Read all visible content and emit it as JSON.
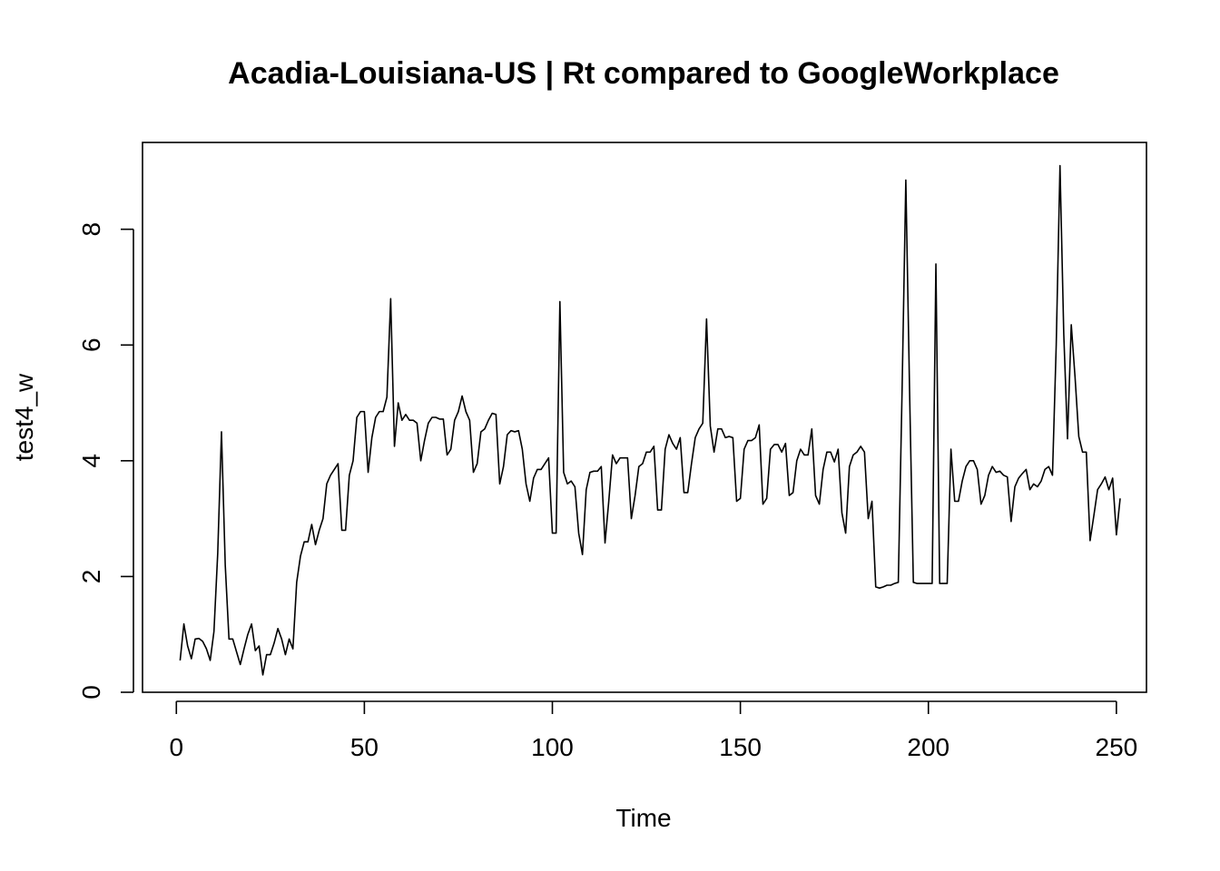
{
  "chart_data": {
    "type": "line",
    "title": "Acadia-Louisiana-US | Rt compared to GoogleWorkplace",
    "xlabel": "Time",
    "ylabel": "test4_w",
    "xlim": [
      -9,
      258
    ],
    "ylim": [
      0,
      9.5
    ],
    "xticks": [
      0,
      50,
      100,
      150,
      200,
      250
    ],
    "yticks": [
      0,
      2,
      4,
      6,
      8
    ],
    "grid": false,
    "line_color": "#000000",
    "series": [
      {
        "values": [
          0.55,
          1.18,
          0.8,
          0.58,
          0.92,
          0.93,
          0.88,
          0.75,
          0.55,
          1.05,
          2.4,
          4.5,
          2.2,
          0.92,
          0.92,
          0.7,
          0.48,
          0.75,
          1.0,
          1.18,
          0.72,
          0.8,
          0.3,
          0.65,
          0.65,
          0.85,
          1.1,
          0.92,
          0.65,
          0.92,
          0.75,
          1.9,
          2.35,
          2.6,
          2.6,
          2.9,
          2.55,
          2.8,
          3.0,
          3.6,
          3.75,
          3.85,
          3.95,
          2.8,
          2.8,
          3.75,
          4.0,
          4.75,
          4.85,
          4.85,
          3.8,
          4.4,
          4.75,
          4.85,
          4.85,
          5.1,
          6.8,
          4.25,
          5.0,
          4.7,
          4.8,
          4.7,
          4.7,
          4.65,
          4.0,
          4.35,
          4.65,
          4.75,
          4.75,
          4.72,
          4.72,
          4.1,
          4.2,
          4.7,
          4.85,
          5.12,
          4.85,
          4.7,
          3.8,
          3.95,
          4.5,
          4.55,
          4.7,
          4.82,
          4.8,
          3.6,
          3.9,
          4.45,
          4.52,
          4.5,
          4.52,
          4.2,
          3.6,
          3.3,
          3.7,
          3.85,
          3.85,
          3.95,
          4.05,
          2.75,
          2.75,
          6.75,
          3.8,
          3.6,
          3.65,
          3.55,
          2.75,
          2.38,
          3.5,
          3.8,
          3.82,
          3.82,
          3.9,
          2.58,
          3.3,
          4.1,
          3.95,
          4.05,
          4.05,
          4.05,
          3.0,
          3.4,
          3.9,
          3.95,
          4.15,
          4.15,
          4.25,
          3.15,
          3.15,
          4.2,
          4.45,
          4.3,
          4.2,
          4.4,
          3.45,
          3.45,
          3.95,
          4.4,
          4.55,
          4.65,
          6.45,
          4.6,
          4.15,
          4.55,
          4.55,
          4.4,
          4.42,
          4.4,
          3.3,
          3.35,
          4.2,
          4.35,
          4.35,
          4.4,
          4.62,
          3.25,
          3.35,
          4.2,
          4.28,
          4.28,
          4.15,
          4.3,
          3.4,
          3.45,
          4.0,
          4.2,
          4.1,
          4.1,
          4.55,
          3.4,
          3.25,
          3.85,
          4.15,
          4.15,
          3.98,
          4.2,
          3.1,
          2.75,
          3.9,
          4.1,
          4.15,
          4.25,
          4.15,
          3.0,
          3.3,
          1.82,
          1.8,
          1.82,
          1.85,
          1.85,
          1.88,
          1.9,
          5.2,
          8.85,
          5.2,
          1.9,
          1.88,
          1.88,
          1.88,
          1.88,
          1.88,
          7.4,
          1.88,
          1.88,
          1.88,
          4.2,
          3.3,
          3.3,
          3.65,
          3.9,
          4.0,
          4.0,
          3.85,
          3.25,
          3.4,
          3.75,
          3.9,
          3.8,
          3.82,
          3.75,
          3.72,
          2.95,
          3.55,
          3.7,
          3.78,
          3.85,
          3.5,
          3.6,
          3.55,
          3.65,
          3.85,
          3.9,
          3.75,
          6.0,
          9.1,
          6.2,
          4.38,
          6.35,
          5.45,
          4.42,
          4.15,
          4.15,
          2.62,
          3.05,
          3.5,
          3.6,
          3.72,
          3.5,
          3.7,
          2.72,
          3.35
        ]
      }
    ]
  }
}
